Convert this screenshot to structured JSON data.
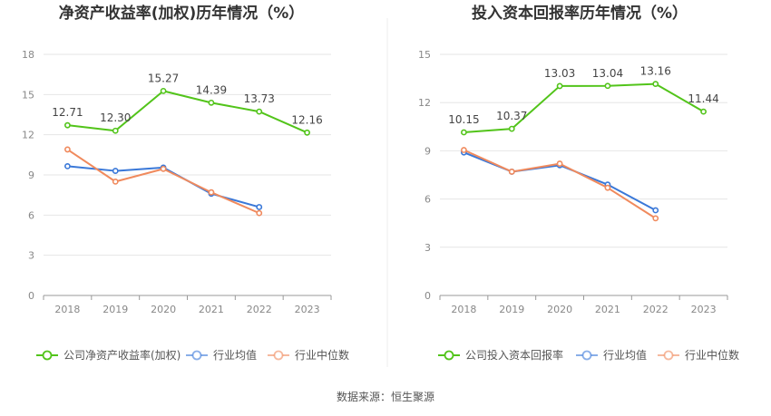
{
  "chart_data": [
    {
      "type": "line",
      "title": "净资产收益率(加权)历年情况（%）",
      "categories": [
        "2018",
        "2019",
        "2020",
        "2021",
        "2022",
        "2023"
      ],
      "ylim": [
        0,
        18
      ],
      "yticks": [
        "0",
        "3",
        "6",
        "9",
        "12",
        "15",
        "18"
      ],
      "grid": true,
      "legend_position": "bottom",
      "series": [
        {
          "name": "公司净资产收益率(加权)",
          "color": "#52c41a",
          "values": [
            12.71,
            12.3,
            15.27,
            14.39,
            13.73,
            12.16
          ],
          "labels": [
            "12.71",
            "12.30",
            "15.27",
            "14.39",
            "13.73",
            "12.16"
          ]
        },
        {
          "name": "行业均值",
          "color": "#3a78d8",
          "values": [
            9.65,
            9.3,
            9.55,
            7.6,
            6.6,
            null
          ]
        },
        {
          "name": "行业中位数",
          "color": "#f08a5d",
          "values": [
            10.9,
            8.5,
            9.45,
            7.7,
            6.15,
            null
          ]
        }
      ]
    },
    {
      "type": "line",
      "title": "投入资本回报率历年情况（%）",
      "categories": [
        "2018",
        "2019",
        "2020",
        "2021",
        "2022",
        "2023"
      ],
      "ylim": [
        0,
        15
      ],
      "yticks": [
        "0",
        "3",
        "6",
        "9",
        "12",
        "15"
      ],
      "grid": true,
      "legend_position": "bottom",
      "series": [
        {
          "name": "公司投入资本回报率",
          "color": "#52c41a",
          "values": [
            10.15,
            10.37,
            13.03,
            13.04,
            13.16,
            11.44
          ],
          "labels": [
            "10.15",
            "10.37",
            "13.03",
            "13.04",
            "13.16",
            "11.44"
          ]
        },
        {
          "name": "行业均值",
          "color": "#3a78d8",
          "values": [
            8.9,
            7.7,
            8.1,
            6.9,
            5.3,
            null
          ]
        },
        {
          "name": "行业中位数",
          "color": "#f08a5d",
          "values": [
            9.05,
            7.7,
            8.2,
            6.7,
            4.8,
            null
          ]
        }
      ]
    }
  ],
  "source_text": "数据来源：恒生聚源"
}
